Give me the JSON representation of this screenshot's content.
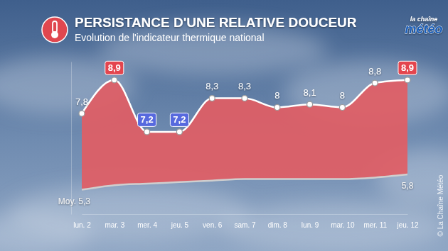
{
  "chart_data": {
    "type": "line",
    "title": "PERSISTANCE D'UNE RELATIVE DOUCEUR",
    "subtitle": "Evolution de l'indicateur thermique national",
    "annotations": [
      "la chaîne météo",
      "© La Chaîne Météo"
    ],
    "categories": [
      "lun. 2",
      "mar. 3",
      "mer. 4",
      "jeu. 5",
      "ven. 6",
      "sam. 7",
      "dim. 8",
      "lun. 9",
      "mar. 10",
      "mer. 11",
      "jeu. 12"
    ],
    "series": [
      {
        "type": "area",
        "color": "#e15d64",
        "values": [
          7.8,
          8.9,
          7.2,
          7.2,
          8.3,
          8.3,
          8,
          8.1,
          8,
          8.8,
          8.9
        ],
        "value_labels": [
          "7,8",
          "8,9",
          "7,2",
          "7,2",
          "8,3",
          "8,3",
          "8",
          "8,1",
          "8",
          "8,8",
          "8,9"
        ]
      },
      {
        "type": "line",
        "color": "#cfcfcf",
        "values": [
          5.3,
          5.45,
          5.5,
          5.55,
          5.6,
          5.65,
          5.65,
          5.65,
          5.65,
          5.7,
          5.8
        ],
        "value_labels": [
          "Moy. 5,3",
          null,
          null,
          null,
          null,
          null,
          null,
          null,
          null,
          null,
          "5,8"
        ]
      }
    ],
    "ylim": [
      4.5,
      9.5
    ],
    "tick_labels": "x",
    "grid": false,
    "data_labels": true
  }
}
